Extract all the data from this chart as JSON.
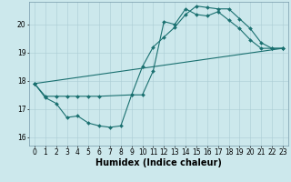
{
  "xlabel": "Humidex (Indice chaleur)",
  "xlim": [
    -0.5,
    23.5
  ],
  "ylim": [
    15.7,
    20.8
  ],
  "yticks": [
    16,
    17,
    18,
    19,
    20
  ],
  "xticks": [
    0,
    1,
    2,
    3,
    4,
    5,
    6,
    7,
    8,
    9,
    10,
    11,
    12,
    13,
    14,
    15,
    16,
    17,
    18,
    19,
    20,
    21,
    22,
    23
  ],
  "bg_color": "#cce8ec",
  "grid_color": "#aaccd4",
  "line_color": "#1a7070",
  "lines": [
    {
      "x": [
        0,
        1,
        2,
        3,
        4,
        5,
        6,
        7,
        8,
        9,
        10,
        11,
        12,
        13,
        14,
        15,
        16,
        17,
        18,
        19,
        20,
        21,
        22,
        23
      ],
      "y": [
        17.9,
        17.4,
        17.2,
        16.7,
        16.75,
        16.5,
        16.4,
        16.35,
        16.4,
        17.5,
        17.5,
        18.35,
        20.1,
        20.0,
        20.55,
        20.35,
        20.3,
        20.45,
        20.15,
        19.85,
        19.45,
        19.15,
        19.15,
        19.15
      ]
    },
    {
      "x": [
        0,
        1,
        2,
        3,
        4,
        5,
        6,
        9,
        10,
        11,
        12,
        13,
        14,
        15,
        16,
        17,
        18,
        19,
        20,
        21,
        22,
        23
      ],
      "y": [
        17.9,
        17.45,
        17.45,
        17.45,
        17.45,
        17.45,
        17.45,
        17.5,
        18.5,
        19.2,
        19.55,
        19.9,
        20.35,
        20.65,
        20.6,
        20.55,
        20.55,
        20.2,
        19.85,
        19.35,
        19.15,
        19.15
      ]
    },
    {
      "x": [
        0,
        23
      ],
      "y": [
        17.9,
        19.15
      ]
    }
  ],
  "tick_fontsize": 5.5,
  "label_fontsize": 7,
  "marker_size": 2.0,
  "line_width": 0.8
}
